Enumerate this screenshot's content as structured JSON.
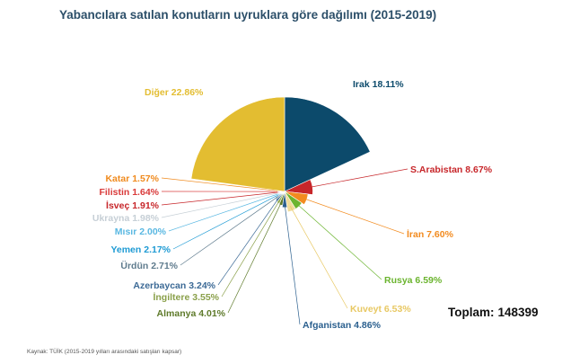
{
  "title": "Yabancılara satılan konutların uyruklara göre dağılımı (2015-2019)",
  "total": {
    "label": "Toplam:",
    "value": "148399"
  },
  "source": "Kaynak: TÜİK (2015-2019 yılları arasındaki satışları kapsar)",
  "chart_data": {
    "type": "pie",
    "title": "Yabancılara satılan konutların uyruklara göre dağılımı (2015-2019)",
    "start_angle_deg": 0,
    "direction": "clockwise",
    "slices": [
      {
        "name": "Irak",
        "value": 18.11,
        "label": "Irak 18.11%",
        "color": "#0c4a6b",
        "radius": 1.0,
        "label_color": "#0c4a6b"
      },
      {
        "name": "S.Arabistan",
        "value": 8.67,
        "label": "S.Arabistan 8.67%",
        "color": "#c7262a",
        "radius": 0.3,
        "label_color": "#c7262a"
      },
      {
        "name": "İran",
        "value": 7.6,
        "label": "İran  7.60%",
        "color": "#f28b1f",
        "radius": 0.25,
        "label_color": "#f28b1f"
      },
      {
        "name": "Rusya",
        "value": 6.59,
        "label": "Rusya 6.59%",
        "color": "#6bb42f",
        "radius": 0.22,
        "label_color": "#6bb42f"
      },
      {
        "name": "Kuveyt",
        "value": 6.53,
        "label": "Kuveyt  6.53%",
        "color": "#f0dc9a",
        "radius": 0.22,
        "label_color": "#e8c863"
      },
      {
        "name": "Afganistan",
        "value": 4.86,
        "label": "Afganistan 4.86%",
        "color": "#2a5f8e",
        "radius": 0.17,
        "label_color": "#2a5f8e"
      },
      {
        "name": "Almanya",
        "value": 4.01,
        "label": "Almanya 4.01%",
        "color": "#5e7a2a",
        "radius": 0.15,
        "label_color": "#5e7a2a"
      },
      {
        "name": "İngiltere",
        "value": 3.55,
        "label": "İngiltere  3.55%",
        "color": "#9ab35a",
        "radius": 0.14,
        "label_color": "#8aa04a"
      },
      {
        "name": "Azerbaycan",
        "value": 3.24,
        "label": "Azerbaycan  3.24%",
        "color": "#3c6a96",
        "radius": 0.13,
        "label_color": "#3c6a96"
      },
      {
        "name": "Ürdün",
        "value": 2.71,
        "label": "Ürdün  2.71%",
        "color": "#6b8799",
        "radius": 0.12,
        "label_color": "#5f7b8d"
      },
      {
        "name": "Yemen",
        "value": 2.17,
        "label": "Yemen 2.17%",
        "color": "#1f9bd4",
        "radius": 0.11,
        "label_color": "#1f9bd4"
      },
      {
        "name": "Mısır",
        "value": 2.0,
        "label": "Mısır  2.00%",
        "color": "#7ec9ea",
        "radius": 0.1,
        "label_color": "#5ab8e2"
      },
      {
        "name": "Ukrayna",
        "value": 1.98,
        "label": "Ukrayna  1.98%",
        "color": "#d4dde3",
        "radius": 0.1,
        "label_color": "#c6cfd6"
      },
      {
        "name": "İsveç",
        "value": 1.91,
        "label": "İsveç  1.91%",
        "color": "#d6474b",
        "radius": 0.1,
        "label_color": "#c7262a"
      },
      {
        "name": "Filistin",
        "value": 1.64,
        "label": "Filistin  1.64%",
        "color": "#e0534f",
        "radius": 0.1,
        "label_color": "#d93a3a"
      },
      {
        "name": "Katar",
        "value": 1.57,
        "label": "Katar  1.57%",
        "color": "#f4a74a",
        "radius": 0.1,
        "label_color": "#f08a1d"
      },
      {
        "name": "Diğer",
        "value": 22.86,
        "label": "Diğer 22.86%",
        "color": "#e3bd31",
        "radius": 1.0,
        "label_color": "#e3bd31"
      }
    ]
  }
}
